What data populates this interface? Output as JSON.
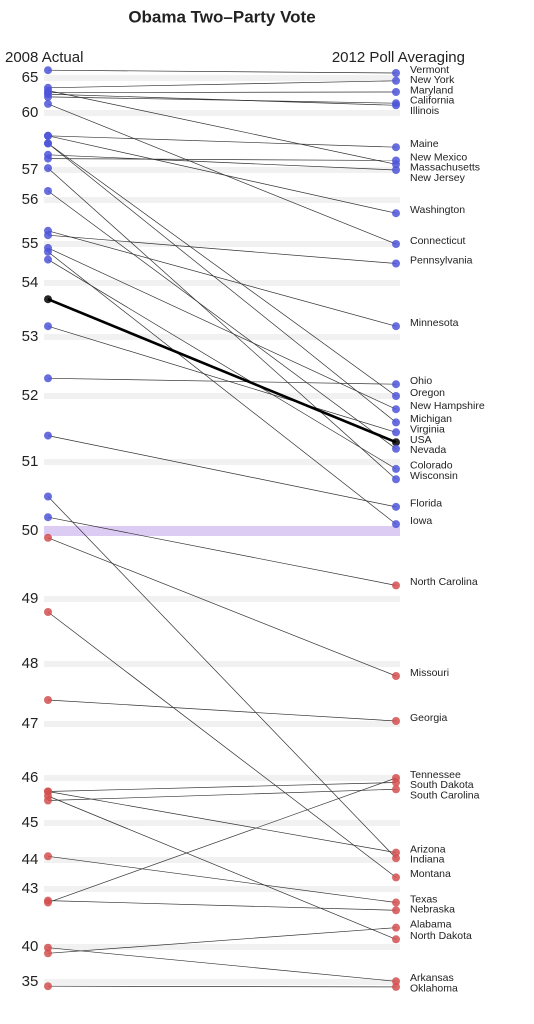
{
  "chart_data": {
    "type": "slope",
    "title": "Obama Two–Party Vote",
    "categories": [
      "Vermont",
      "New York",
      "Maryland",
      "California",
      "Illinois",
      "Maine",
      "New Mexico",
      "Massachusetts",
      "New Jersey",
      "Washington",
      "Connecticut",
      "Pennsylvania",
      "Minnesota",
      "Ohio",
      "Oregon",
      "New Hampshire",
      "Michigan",
      "Virginia",
      "USA",
      "Nevada",
      "Colorado",
      "Wisconsin",
      "Florida",
      "Iowa",
      "North Carolina",
      "Missouri",
      "Georgia",
      "Tennessee",
      "South Dakota",
      "South Carolina",
      "Arizona",
      "Indiana",
      "Montana",
      "Texas",
      "Nebraska",
      "Alabama",
      "North Dakota",
      "Arkansas",
      "Oklahoma"
    ],
    "series": [
      {
        "name": "2008 Actual",
        "values": [
          68.9,
          63.6,
          62.9,
          62.3,
          62.7,
          58.8,
          57.6,
          63.2,
          57.8,
          58.8,
          61.3,
          55.2,
          55.3,
          52.3,
          58.4,
          54.9,
          58.4,
          53.2,
          53.7,
          56.3,
          54.6,
          57.1,
          51.4,
          54.8,
          50.2,
          49.9,
          47.4,
          42.3,
          45.7,
          45.5,
          45.7,
          50.5,
          48.8,
          44.1,
          42.4,
          39.1,
          45.6,
          39.9,
          34.4
        ]
      },
      {
        "name": "2012 Poll Averaging",
        "values": [
          67.5,
          64.6,
          63.0,
          61.4,
          61.1,
          58.2,
          57.5,
          57.3,
          57.0,
          55.7,
          55.0,
          54.5,
          53.2,
          52.2,
          52.0,
          51.8,
          51.6,
          51.45,
          51.3,
          51.2,
          50.9,
          50.75,
          50.35,
          50.1,
          49.2,
          47.8,
          47.05,
          46.0,
          45.9,
          45.75,
          44.2,
          44.05,
          43.4,
          42.3,
          41.9,
          41.0,
          40.4,
          35.1,
          34.3
        ]
      }
    ],
    "yticks": [
      65,
      60,
      57,
      56,
      55,
      54,
      53,
      52,
      51,
      50,
      49,
      48,
      47,
      46,
      45,
      44,
      43,
      40,
      35
    ],
    "threshold": 50,
    "highlight": "USA",
    "colors": {
      "above": "#4f55d9",
      "below": "#d4504f",
      "highlight": "#000000",
      "threshold": "#dccbf3",
      "grid": "#f1f1f1"
    },
    "grid": true
  }
}
